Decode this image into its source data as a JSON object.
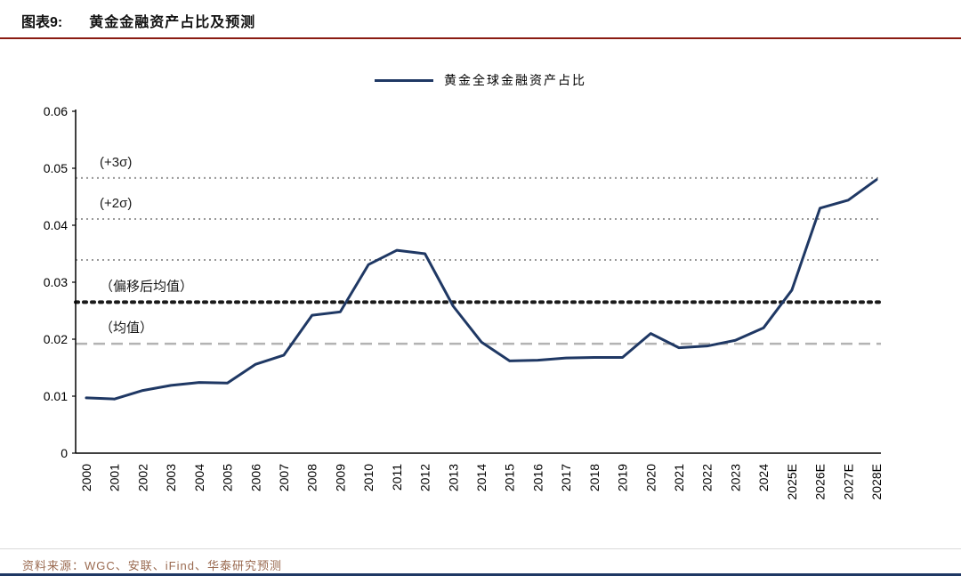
{
  "header": {
    "label": "图表9:",
    "title": "黄金金融资产占比及预测"
  },
  "footer": {
    "source": "资料来源：WGC、安联、iFind、华泰研究预测"
  },
  "colors": {
    "series_line": "#1f3864",
    "title_rule": "#8a1b12",
    "ref_dotted_gray": "#999999",
    "mean_dashed_gray": "#b3b3b3",
    "shifted_mean_black": "#1a1a1a",
    "axis": "#000000",
    "footer_text": "#9a6a50"
  },
  "chart_data": {
    "type": "line",
    "title": "黄金金融资产占比及预测",
    "legend_position": "top-center",
    "grid": false,
    "x": [
      "2000",
      "2001",
      "2002",
      "2003",
      "2004",
      "2005",
      "2006",
      "2007",
      "2008",
      "2009",
      "2010",
      "2011",
      "2012",
      "2013",
      "2014",
      "2015",
      "2016",
      "2017",
      "2018",
      "2019",
      "2020",
      "2021",
      "2022",
      "2023",
      "2024",
      "2025E",
      "2026E",
      "2027E",
      "2028E"
    ],
    "series": [
      {
        "name": "黄金全球金融资产占比",
        "values": [
          0.0097,
          0.0095,
          0.011,
          0.0119,
          0.0124,
          0.0123,
          0.0156,
          0.0172,
          0.0242,
          0.0248,
          0.0331,
          0.0356,
          0.035,
          0.0258,
          0.0195,
          0.0162,
          0.0163,
          0.0167,
          0.0168,
          0.0168,
          0.021,
          0.0185,
          0.0188,
          0.0198,
          0.022,
          0.0286,
          0.043,
          0.0444,
          0.048
        ]
      }
    ],
    "ylim": [
      0,
      0.06
    ],
    "yticks": [
      0,
      0.01,
      0.02,
      0.03,
      0.04,
      0.05,
      0.06
    ],
    "ytick_labels": [
      "0",
      "0.01",
      "0.02",
      "0.03",
      "0.04",
      "0.05",
      "0.06"
    ],
    "xlabel": "",
    "ylabel": "",
    "reference_lines": [
      {
        "name": "plus-3-sigma",
        "label": "(+3σ)",
        "value": 0.0483,
        "style": "dotted",
        "color": "#999999"
      },
      {
        "name": "plus-2-sigma",
        "label": "(+2σ)",
        "value": 0.0411,
        "style": "dotted",
        "color": "#999999"
      },
      {
        "name": "plus-1-sigma",
        "label": "",
        "value": 0.0339,
        "style": "dotted",
        "color": "#999999"
      },
      {
        "name": "shifted-mean",
        "label": "（偏移后均值）",
        "value": 0.0265,
        "style": "bold-dotted",
        "color": "#1a1a1a"
      },
      {
        "name": "mean",
        "label": "（均值）",
        "value": 0.0192,
        "style": "dashed",
        "color": "#b3b3b3"
      }
    ]
  }
}
